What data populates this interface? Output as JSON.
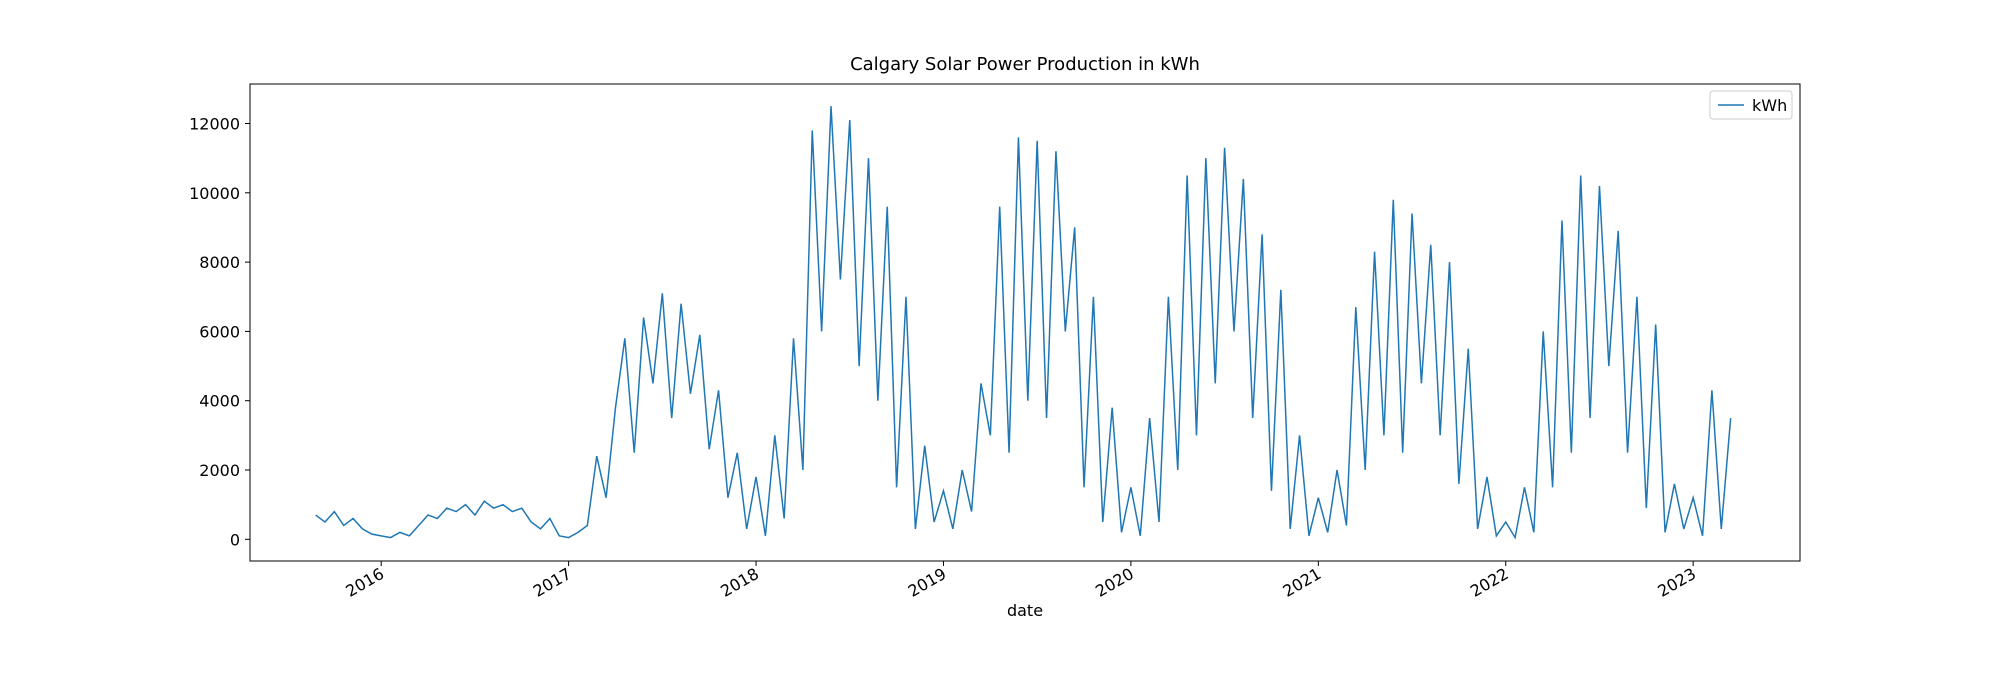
{
  "chart_data": {
    "type": "line",
    "title": "Calgary Solar Power Production in kWh",
    "x_label": "date",
    "x": [
      2015.65,
      2015.7,
      2015.75,
      2015.8,
      2015.85,
      2015.9,
      2015.95,
      2016.0,
      2016.05,
      2016.1,
      2016.15,
      2016.2,
      2016.25,
      2016.3,
      2016.35,
      2016.4,
      2016.45,
      2016.5,
      2016.55,
      2016.6,
      2016.65,
      2016.7,
      2016.75,
      2016.8,
      2016.85,
      2016.9,
      2016.95,
      2017.0,
      2017.05,
      2017.1,
      2017.15,
      2017.2,
      2017.25,
      2017.3,
      2017.35,
      2017.4,
      2017.45,
      2017.5,
      2017.55,
      2017.6,
      2017.65,
      2017.7,
      2017.75,
      2017.8,
      2017.85,
      2017.9,
      2017.95,
      2018.0,
      2018.05,
      2018.1,
      2018.15,
      2018.2,
      2018.25,
      2018.3,
      2018.35,
      2018.4,
      2018.45,
      2018.5,
      2018.55,
      2018.6,
      2018.65,
      2018.7,
      2018.75,
      2018.8,
      2018.85,
      2018.9,
      2018.95,
      2019.0,
      2019.05,
      2019.1,
      2019.15,
      2019.2,
      2019.25,
      2019.3,
      2019.35,
      2019.4,
      2019.45,
      2019.5,
      2019.55,
      2019.6,
      2019.65,
      2019.7,
      2019.75,
      2019.8,
      2019.85,
      2019.9,
      2019.95,
      2020.0,
      2020.05,
      2020.1,
      2020.15,
      2020.2,
      2020.25,
      2020.3,
      2020.35,
      2020.4,
      2020.45,
      2020.5,
      2020.55,
      2020.6,
      2020.65,
      2020.7,
      2020.75,
      2020.8,
      2020.85,
      2020.9,
      2020.95,
      2021.0,
      2021.05,
      2021.1,
      2021.15,
      2021.2,
      2021.25,
      2021.3,
      2021.35,
      2021.4,
      2021.45,
      2021.5,
      2021.55,
      2021.6,
      2021.65,
      2021.7,
      2021.75,
      2021.8,
      2021.85,
      2021.9,
      2021.95,
      2022.0,
      2022.05,
      2022.1,
      2022.15,
      2022.2,
      2022.25,
      2022.3,
      2022.35,
      2022.4,
      2022.45,
      2022.5,
      2022.55,
      2022.6,
      2022.65,
      2022.7,
      2022.75,
      2022.8,
      2022.85,
      2022.9,
      2022.95,
      2023.0,
      2023.05,
      2023.1,
      2023.15,
      2023.2
    ],
    "series": [
      {
        "name": "kWh",
        "color": "#1f77b4",
        "values": [
          700,
          500,
          800,
          400,
          600,
          300,
          150,
          100,
          50,
          200,
          100,
          400,
          700,
          600,
          900,
          800,
          1000,
          700,
          1100,
          900,
          1000,
          800,
          900,
          500,
          300,
          600,
          100,
          50,
          200,
          400,
          2400,
          1200,
          3800,
          5800,
          2500,
          6400,
          4500,
          7100,
          3500,
          6800,
          4200,
          5900,
          2600,
          4300,
          1200,
          2500,
          300,
          1800,
          100,
          3000,
          600,
          5800,
          2000,
          11800,
          6000,
          12500,
          7500,
          12100,
          5000,
          11000,
          4000,
          9600,
          1500,
          7000,
          300,
          2700,
          500,
          1400,
          300,
          2000,
          800,
          4500,
          3000,
          9600,
          2500,
          11600,
          4000,
          11500,
          3500,
          11200,
          6000,
          9000,
          1500,
          7000,
          500,
          3800,
          200,
          1500,
          100,
          3500,
          500,
          7000,
          2000,
          10500,
          3000,
          11000,
          4500,
          11300,
          6000,
          10400,
          3500,
          8800,
          1400,
          7200,
          300,
          3000,
          100,
          1200,
          200,
          2000,
          400,
          6700,
          2000,
          8300,
          3000,
          9800,
          2500,
          9400,
          4500,
          8500,
          3000,
          8000,
          1600,
          5500,
          300,
          1800,
          100,
          500,
          50,
          1500,
          200,
          6000,
          1500,
          9200,
          2500,
          10500,
          3500,
          10200,
          5000,
          8900,
          2500,
          7000,
          900,
          6200,
          200,
          1600,
          300,
          1200,
          100,
          4300,
          300,
          3500
        ]
      }
    ],
    "xlim": [
      2015.3,
      2023.57
    ],
    "xticks": [
      2016,
      2017,
      2018,
      2019,
      2020,
      2021,
      2022,
      2023
    ],
    "ylim": [
      -626,
      13140
    ],
    "yticks": [
      0,
      2000,
      4000,
      6000,
      8000,
      10000,
      12000
    ],
    "grid": false,
    "legend": "upper right"
  }
}
